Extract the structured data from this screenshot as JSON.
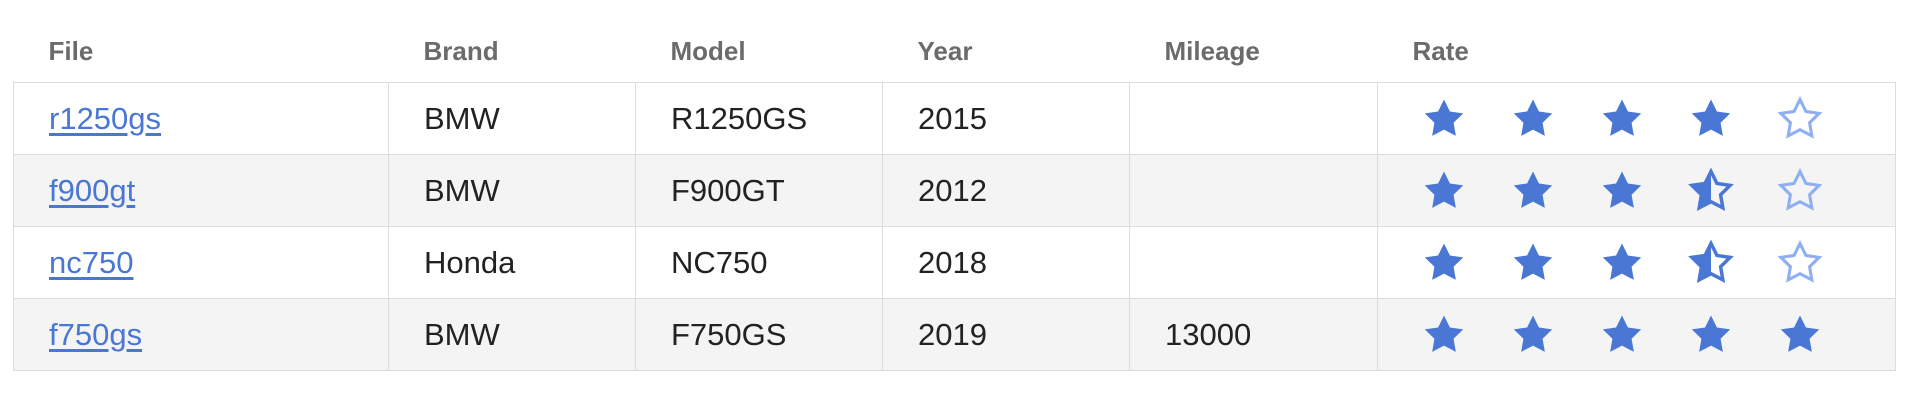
{
  "colors": {
    "star_fill": "#4a76d4",
    "star_empty": "#8fb0f0",
    "link": "#4a76d4"
  },
  "table": {
    "headers": {
      "file": "File",
      "brand": "Brand",
      "model": "Model",
      "year": "Year",
      "mileage": "Mileage",
      "rate": "Rate"
    },
    "rows": [
      {
        "file": "r1250gs",
        "brand": "BMW",
        "model": "R1250GS",
        "year": "2015",
        "mileage": "",
        "rating": 4,
        "max_rating": 5
      },
      {
        "file": "f900gt",
        "brand": "BMW",
        "model": "F900GT",
        "year": "2012",
        "mileage": "",
        "rating": 3.5,
        "max_rating": 5
      },
      {
        "file": "nc750",
        "brand": "Honda",
        "model": "NC750",
        "year": "2018",
        "mileage": "",
        "rating": 3.5,
        "max_rating": 5
      },
      {
        "file": "f750gs",
        "brand": "BMW",
        "model": "F750GS",
        "year": "2019",
        "mileage": "13000",
        "rating": 5,
        "max_rating": 5
      }
    ]
  }
}
